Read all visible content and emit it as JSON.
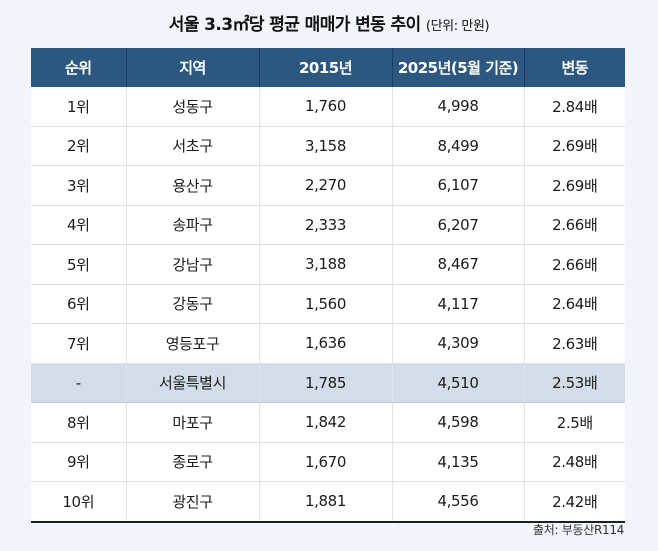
{
  "title": {
    "main": "서울 3.3㎡당 평균 매매가 변동 추이",
    "unit": "(단위: 만원)"
  },
  "table": {
    "headers": [
      "순위",
      "지역",
      "2015년",
      "2025년(5월 기준)",
      "변동"
    ],
    "rows": [
      {
        "rank": "1위",
        "district": "성동구",
        "y2015": "1,760",
        "y2025": "4,998",
        "change": "2.84배"
      },
      {
        "rank": "2위",
        "district": "서초구",
        "y2015": "3,158",
        "y2025": "8,499",
        "change": "2.69배"
      },
      {
        "rank": "3위",
        "district": "용산구",
        "y2015": "2,270",
        "y2025": "6,107",
        "change": "2.69배"
      },
      {
        "rank": "4위",
        "district": "송파구",
        "y2015": "2,333",
        "y2025": "6,207",
        "change": "2.66배"
      },
      {
        "rank": "5위",
        "district": "강남구",
        "y2015": "3,188",
        "y2025": "8,467",
        "change": "2.66배"
      },
      {
        "rank": "6위",
        "district": "강동구",
        "y2015": "1,560",
        "y2025": "4,117",
        "change": "2.64배"
      },
      {
        "rank": "7위",
        "district": "영등포구",
        "y2015": "1,636",
        "y2025": "4,309",
        "change": "2.63배"
      },
      {
        "rank": "-",
        "district": "서울특별시",
        "y2015": "1,785",
        "y2025": "4,510",
        "change": "2.53배"
      },
      {
        "rank": "8위",
        "district": "마포구",
        "y2015": "1,842",
        "y2025": "4,598",
        "change": "2.5배"
      },
      {
        "rank": "9위",
        "district": "종로구",
        "y2015": "1,670",
        "y2025": "4,135",
        "change": "2.48배"
      },
      {
        "rank": "10위",
        "district": "광진구",
        "y2015": "1,881",
        "y2025": "4,556",
        "change": "2.42배"
      }
    ]
  },
  "source": "출처: 부동산R114",
  "colors": {
    "header_bg": "#2b5780",
    "highlight_row_bg": "#d3dde9",
    "page_bg": "#f1f4fa"
  }
}
